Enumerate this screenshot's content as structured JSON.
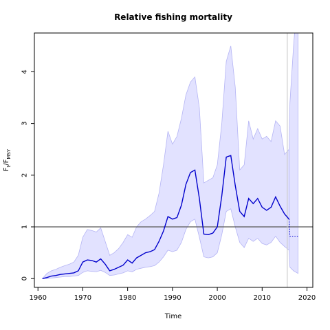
{
  "chart_data": {
    "type": "line",
    "title": "Relative fishing mortality",
    "xlabel": "Time",
    "ylabel_main": "F",
    "ylabel_sub_t": "t",
    "ylabel_sub_msy": "MSY",
    "xlim": [
      1959.2,
      2021.3
    ],
    "ylim": [
      -0.17,
      4.75
    ],
    "xticks": [
      1960,
      1970,
      1980,
      1990,
      2000,
      2010,
      2020
    ],
    "yticks": [
      0,
      1,
      2,
      3,
      4
    ],
    "reference_line_y": 1,
    "vertical_line_x": 2015.6,
    "colors": {
      "line": "#0000cc",
      "band_fill": "#e2e2ff",
      "band_edge": "#b4b4f4",
      "refline": "#555555",
      "vline": "#cccccc"
    },
    "series": [
      {
        "name": "",
        "x": [
          1961,
          1962,
          1963,
          1964,
          1965,
          1966,
          1967,
          1968,
          1969,
          1970,
          1971,
          1972,
          1973,
          1974,
          1975,
          1976,
          1977,
          1978,
          1979,
          1980,
          1981,
          1982,
          1983,
          1984,
          1985,
          1986,
          1987,
          1988,
          1989,
          1990,
          1991,
          1992,
          1993,
          1994,
          1995,
          1996,
          1997,
          1998,
          1999,
          2000,
          2001,
          2002,
          2003,
          2004,
          2005,
          2006,
          2007,
          2008,
          2009,
          2010,
          2011,
          2012,
          2013,
          2014,
          2015,
          2016
        ],
        "values": [
          0.0,
          0.02,
          0.05,
          0.06,
          0.08,
          0.09,
          0.1,
          0.11,
          0.15,
          0.32,
          0.36,
          0.35,
          0.32,
          0.38,
          0.28,
          0.15,
          0.18,
          0.22,
          0.26,
          0.36,
          0.3,
          0.4,
          0.45,
          0.5,
          0.52,
          0.56,
          0.72,
          0.92,
          1.2,
          1.15,
          1.18,
          1.42,
          1.82,
          2.05,
          2.1,
          1.55,
          0.86,
          0.85,
          0.88,
          1.0,
          1.6,
          2.35,
          2.38,
          1.8,
          1.3,
          1.2,
          1.55,
          1.45,
          1.55,
          1.38,
          1.32,
          1.38,
          1.58,
          1.4,
          1.25,
          1.15
        ],
        "lower": [
          0.0,
          0.0,
          0.01,
          0.02,
          0.03,
          0.04,
          0.04,
          0.05,
          0.06,
          0.12,
          0.15,
          0.14,
          0.13,
          0.16,
          0.12,
          0.06,
          0.07,
          0.09,
          0.11,
          0.15,
          0.13,
          0.18,
          0.2,
          0.22,
          0.23,
          0.25,
          0.32,
          0.42,
          0.55,
          0.52,
          0.55,
          0.7,
          0.95,
          1.1,
          1.15,
          0.8,
          0.42,
          0.4,
          0.42,
          0.5,
          0.85,
          1.3,
          1.35,
          1.0,
          0.7,
          0.6,
          0.78,
          0.72,
          0.78,
          0.68,
          0.65,
          0.7,
          0.82,
          0.7,
          0.62,
          0.55
        ],
        "upper": [
          0.0,
          0.1,
          0.15,
          0.18,
          0.22,
          0.25,
          0.28,
          0.32,
          0.45,
          0.8,
          0.95,
          0.93,
          0.9,
          0.98,
          0.72,
          0.45,
          0.5,
          0.58,
          0.7,
          0.85,
          0.8,
          1.0,
          1.1,
          1.15,
          1.22,
          1.3,
          1.65,
          2.2,
          2.85,
          2.6,
          2.75,
          3.1,
          3.55,
          3.8,
          3.9,
          3.3,
          1.85,
          1.9,
          1.95,
          2.2,
          3.0,
          4.2,
          4.5,
          3.7,
          2.1,
          2.2,
          3.05,
          2.7,
          2.9,
          2.7,
          2.75,
          2.65,
          3.05,
          2.95,
          2.4,
          2.5
        ]
      },
      {
        "name": "",
        "style": "dotted",
        "x": [
          2016,
          2016.2,
          2017,
          2018
        ],
        "values": [
          1.15,
          0.82,
          0.82,
          0.82
        ],
        "lower": [
          0.55,
          0.22,
          0.15,
          0.1
        ],
        "upper": [
          2.5,
          3.4,
          4.5,
          5.6
        ]
      }
    ]
  }
}
